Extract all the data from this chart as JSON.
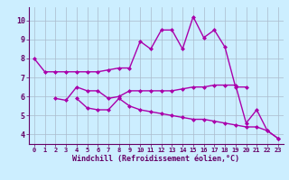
{
  "background_color": "#cceeff",
  "line_color": "#aa00aa",
  "marker": "D",
  "marker_size": 2,
  "linewidth": 1.0,
  "series": [
    [
      8.0,
      7.3,
      7.3,
      7.3,
      7.3,
      7.3,
      7.3,
      7.4,
      7.5,
      7.5,
      8.9,
      8.5,
      9.5,
      9.5,
      8.5,
      10.2,
      9.1,
      9.5,
      8.6,
      6.5,
      6.5,
      null,
      null,
      null
    ],
    [
      null,
      null,
      5.9,
      5.8,
      6.5,
      6.3,
      6.3,
      5.9,
      6.0,
      6.3,
      6.3,
      6.3,
      6.3,
      6.3,
      6.4,
      6.5,
      6.5,
      6.6,
      6.6,
      6.6,
      4.6,
      5.3,
      4.2,
      3.8
    ],
    [
      null,
      null,
      null,
      null,
      5.9,
      5.4,
      5.3,
      5.3,
      5.9,
      5.5,
      5.3,
      5.2,
      5.1,
      5.0,
      4.9,
      4.8,
      4.8,
      4.7,
      4.6,
      4.5,
      4.4,
      4.4,
      4.2,
      3.8
    ]
  ],
  "xlim": [
    -0.5,
    23.5
  ],
  "ylim": [
    3.5,
    10.7
  ],
  "yticks": [
    4,
    5,
    6,
    7,
    8,
    9,
    10
  ],
  "xticks": [
    0,
    1,
    2,
    3,
    4,
    5,
    6,
    7,
    8,
    9,
    10,
    11,
    12,
    13,
    14,
    15,
    16,
    17,
    18,
    19,
    20,
    21,
    22,
    23
  ],
  "xlabel": "Windchill (Refroidissement éolien,°C)",
  "grid_color": "#aabbcc",
  "axis_color": "#660066",
  "tick_color": "#660066",
  "label_color": "#660066"
}
